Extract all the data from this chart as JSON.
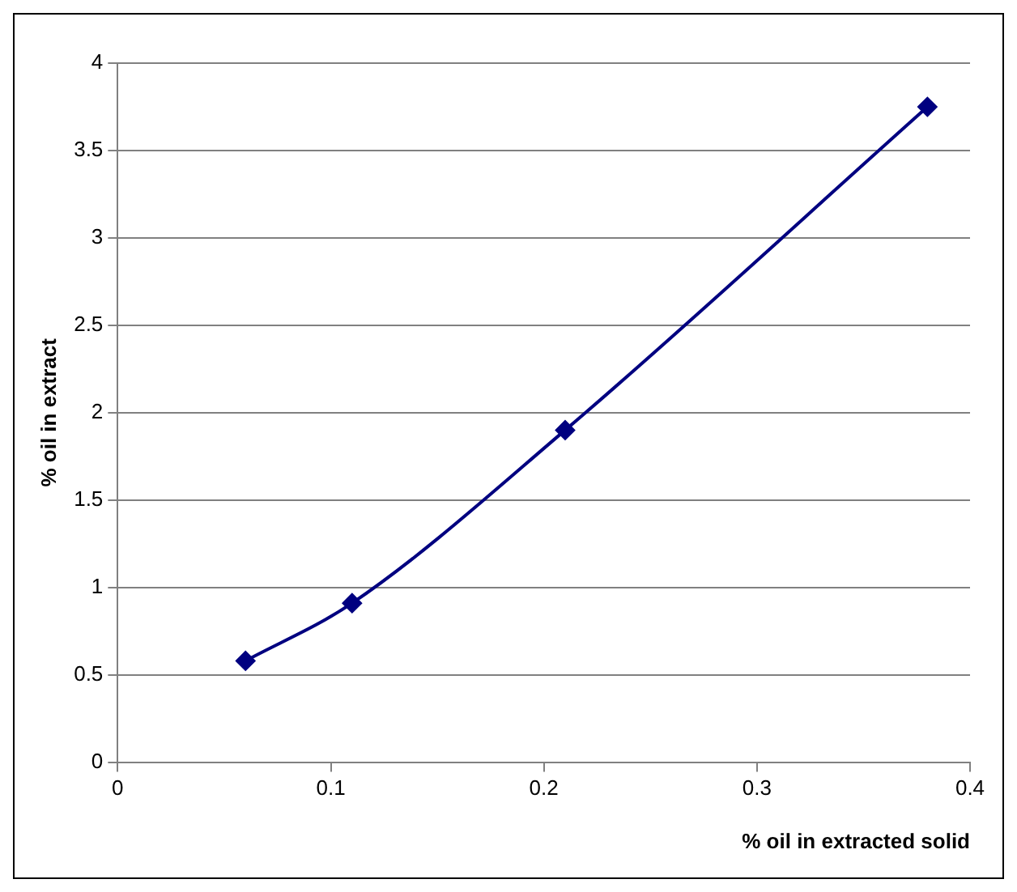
{
  "chart_data": {
    "type": "line",
    "xlabel": "% oil in extracted solid",
    "ylabel": "% oil in extract",
    "x": [
      0.06,
      0.11,
      0.21,
      0.38
    ],
    "series": [
      {
        "color": "#000080",
        "values": [
          0.58,
          0.91,
          1.9,
          3.75
        ]
      }
    ],
    "xlim": [
      0,
      0.4
    ],
    "xticks": [
      0,
      0.1,
      0.2,
      0.3,
      0.4
    ],
    "ylim": [
      0,
      4
    ],
    "yticks": [
      0,
      0.5,
      1,
      1.5,
      2,
      2.5,
      3,
      3.5,
      4
    ],
    "grid": "y",
    "legend": false,
    "marker": "diamond",
    "line_style": "solid"
  }
}
